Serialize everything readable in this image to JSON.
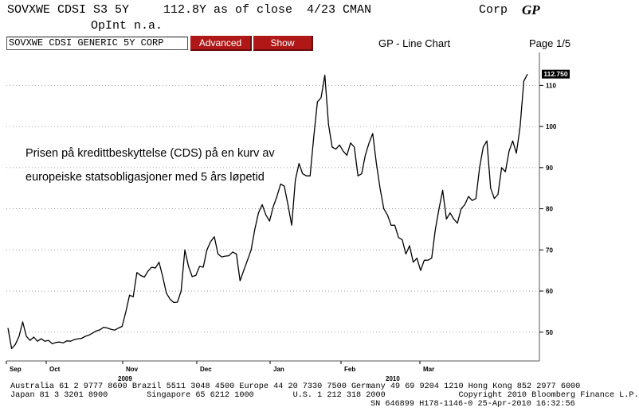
{
  "header": {
    "ticker": "SOVXWE CDSI S3 5Y",
    "quote": "112.8Y as of close  4/23 CMAN",
    "opint": "OpInt n.a.",
    "market": "Corp",
    "function_code": "GP"
  },
  "toolbar": {
    "security_field": "SOVXWE CDSI GENERIC 5Y CORP",
    "advanced_label": "Advanced",
    "show_label": "Show",
    "chart_kind": "GP - Line Chart",
    "page": "Page 1/5"
  },
  "annotation": {
    "line1": "Prisen på kredittbeskyttelse (CDS) på en kurv av",
    "line2": "europeiske statsobligasjoner med 5 års løpetid"
  },
  "footer": {
    "line1": "Australia 61 2 9777 8600 Brazil 5511 3048 4500 Europe 44 20 7330 7500 Germany 49 69 9204 1210 Hong Kong 852 2977 6000",
    "line2": "Japan 81 3 3201 8900        Singapore 65 6212 1000        U.S. 1 212 318 2000               Copyright 2010 Bloomberg Finance L.P.",
    "line3": "SN 646899 H178-1146-0 25-Apr-2010 16:32:56"
  },
  "colors": {
    "button_bg": "#b01818",
    "line": "#000000",
    "grid": "#8a8a8a",
    "last_tag_bg": "#000000"
  },
  "chart_data": {
    "type": "line",
    "ylim": [
      43,
      118
    ],
    "y_ticks": [
      50,
      60,
      70,
      80,
      90,
      100,
      110
    ],
    "y_tick_labels": [
      "50",
      "60",
      "70",
      "80",
      "90",
      "100",
      "110"
    ],
    "last_value_label": "112.750",
    "month_labels": [
      "Sep",
      "Oct",
      "Nov",
      "Dec",
      "Jan",
      "Feb",
      "Mar"
    ],
    "year_labels": [
      "2009",
      "2010"
    ],
    "grid": true,
    "series": [
      {
        "values": [
          51,
          46,
          47,
          49,
          52.5,
          49,
          48,
          48.8,
          47.8,
          48.4,
          47.8,
          48,
          47.2,
          47.5,
          47.6,
          47.4,
          47.9,
          47.8,
          48.2,
          48.4,
          48.5,
          49,
          49.3,
          49.8,
          50.3,
          50.6,
          51.2,
          51,
          50.7,
          50.5,
          51,
          51.4,
          55,
          59,
          58.6,
          64.5,
          63.8,
          63.4,
          64.8,
          65.8,
          65.6,
          67,
          63.5,
          59.5,
          58,
          57.2,
          57.3,
          60,
          70,
          66,
          63.5,
          63.8,
          66,
          65.8,
          70,
          72,
          73.2,
          69,
          68.3,
          68.5,
          68.6,
          69.5,
          69,
          62.5,
          65,
          67.5,
          70,
          75,
          79,
          81,
          78.5,
          77,
          80.5,
          83,
          86,
          85.5,
          81,
          76,
          87,
          91,
          88.5,
          88,
          88,
          97.5,
          106,
          107,
          112.5,
          100.5,
          95,
          94.5,
          95.5,
          94,
          93,
          96,
          95,
          88,
          88.5,
          93,
          96,
          98.3,
          91,
          85,
          80,
          78.5,
          76,
          76,
          73,
          72.5,
          69,
          71,
          67,
          68,
          65,
          67.5,
          67.5,
          68,
          75,
          80,
          84.5,
          77.5,
          79,
          77.5,
          76.5,
          80,
          81,
          83,
          82,
          82.5,
          90,
          95,
          96.5,
          85,
          82.5,
          83.5,
          90,
          89,
          94,
          96.5,
          93.5,
          100,
          111,
          112.75
        ]
      }
    ]
  }
}
